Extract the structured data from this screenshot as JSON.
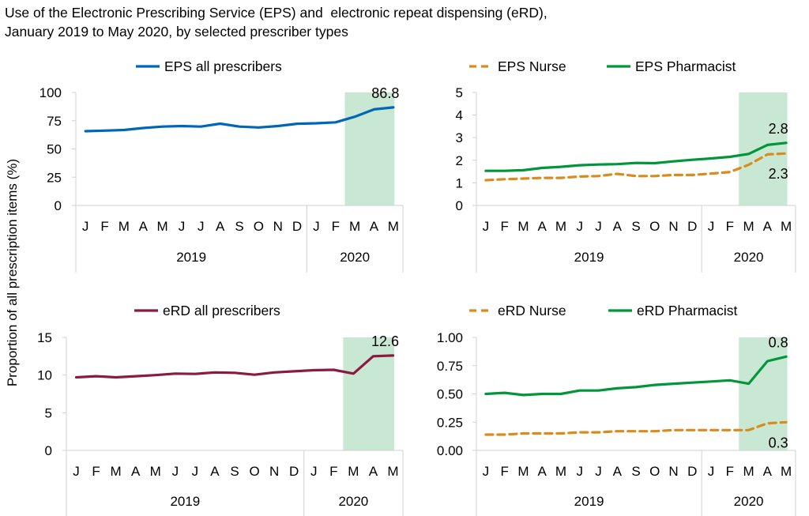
{
  "title": {
    "line1": "Use of the Electronic Prescribing Service (EPS) and  electronic repeat dispensing (eRD),",
    "line2": "January 2019 to May 2020, by selected prescriber types"
  },
  "ylabel": "Proportion of all prescription items (%)",
  "colors": {
    "blue": "#0066b8",
    "maroon": "#8b1a3f",
    "green": "#009639",
    "orange": "#d98b1c",
    "highlight": "#c9e8d4",
    "axis": "#d0d0d0"
  },
  "chart_data": [
    {
      "type": "line",
      "categories": [
        "J",
        "F",
        "M",
        "A",
        "M",
        "J",
        "J",
        "A",
        "S",
        "O",
        "N",
        "D",
        "J",
        "F",
        "M",
        "A",
        "M"
      ],
      "years": [
        {
          "label": "2019",
          "count": 12
        },
        {
          "label": "2020",
          "count": 5
        }
      ],
      "highlight": [
        14,
        16
      ],
      "ylim": [
        0,
        100
      ],
      "yticks": [
        0,
        25,
        50,
        75,
        100
      ],
      "series": [
        {
          "name": "EPS all prescribers",
          "color": "blue",
          "dash": false,
          "values": [
            65.7,
            66.2,
            66.8,
            68.5,
            69.8,
            70.3,
            69.8,
            72.4,
            69.8,
            69.0,
            70.3,
            72.3,
            72.7,
            73.6,
            78.5,
            85.0,
            86.8
          ],
          "label": "86.8",
          "label_pos": "above"
        }
      ]
    },
    {
      "type": "line",
      "categories": [
        "J",
        "F",
        "M",
        "A",
        "M",
        "J",
        "J",
        "A",
        "S",
        "O",
        "N",
        "D",
        "J",
        "F",
        "M",
        "A",
        "M"
      ],
      "years": [
        {
          "label": "2019",
          "count": 12
        },
        {
          "label": "2020",
          "count": 5
        }
      ],
      "highlight": [
        14,
        16
      ],
      "ylim": [
        0,
        5
      ],
      "yticks": [
        0,
        1,
        2,
        3,
        4,
        5
      ],
      "series": [
        {
          "name": "EPS Nurse",
          "color": "orange",
          "dash": true,
          "values": [
            1.12,
            1.16,
            1.19,
            1.22,
            1.22,
            1.28,
            1.3,
            1.4,
            1.3,
            1.3,
            1.35,
            1.35,
            1.41,
            1.48,
            1.8,
            2.26,
            2.3
          ],
          "label": "2.3",
          "label_pos": "below"
        },
        {
          "name": "EPS Pharmacist",
          "color": "green",
          "dash": false,
          "values": [
            1.53,
            1.53,
            1.56,
            1.66,
            1.71,
            1.78,
            1.81,
            1.83,
            1.88,
            1.87,
            1.95,
            2.02,
            2.08,
            2.15,
            2.28,
            2.68,
            2.77
          ],
          "label": "2.8",
          "label_pos": "above"
        }
      ]
    },
    {
      "type": "line",
      "categories": [
        "J",
        "F",
        "M",
        "A",
        "M",
        "J",
        "J",
        "A",
        "S",
        "O",
        "N",
        "D",
        "J",
        "F",
        "M",
        "A",
        "M"
      ],
      "years": [
        {
          "label": "2019",
          "count": 12
        },
        {
          "label": "2020",
          "count": 5
        }
      ],
      "highlight": [
        14,
        16
      ],
      "ylim": [
        0,
        15
      ],
      "yticks": [
        0,
        5,
        10,
        15
      ],
      "series": [
        {
          "name": "eRD all prescribers",
          "color": "maroon",
          "dash": false,
          "values": [
            9.7,
            9.85,
            9.7,
            9.85,
            10.0,
            10.2,
            10.15,
            10.35,
            10.3,
            10.05,
            10.35,
            10.5,
            10.65,
            10.7,
            10.2,
            12.5,
            12.6
          ],
          "label": "12.6",
          "label_pos": "above"
        }
      ]
    },
    {
      "type": "line",
      "categories": [
        "J",
        "F",
        "M",
        "A",
        "M",
        "J",
        "J",
        "A",
        "S",
        "O",
        "N",
        "D",
        "J",
        "F",
        "M",
        "A",
        "M"
      ],
      "years": [
        {
          "label": "2019",
          "count": 12
        },
        {
          "label": "2020",
          "count": 5
        }
      ],
      "highlight": [
        14,
        16
      ],
      "ylim": [
        0,
        1
      ],
      "yticks": [
        "0.00",
        "0.25",
        "0.50",
        "0.75",
        "1.00"
      ],
      "series": [
        {
          "name": "eRD Nurse",
          "color": "orange",
          "dash": true,
          "values": [
            0.14,
            0.14,
            0.15,
            0.15,
            0.15,
            0.16,
            0.16,
            0.17,
            0.17,
            0.17,
            0.18,
            0.18,
            0.18,
            0.18,
            0.18,
            0.24,
            0.25
          ],
          "label": "0.3",
          "label_pos": "below"
        },
        {
          "name": "eRD Pharmacist",
          "color": "green",
          "dash": false,
          "values": [
            0.5,
            0.51,
            0.49,
            0.5,
            0.5,
            0.53,
            0.53,
            0.55,
            0.56,
            0.58,
            0.59,
            0.6,
            0.61,
            0.62,
            0.59,
            0.79,
            0.83
          ],
          "label": "0.8",
          "label_pos": "above"
        }
      ]
    }
  ]
}
